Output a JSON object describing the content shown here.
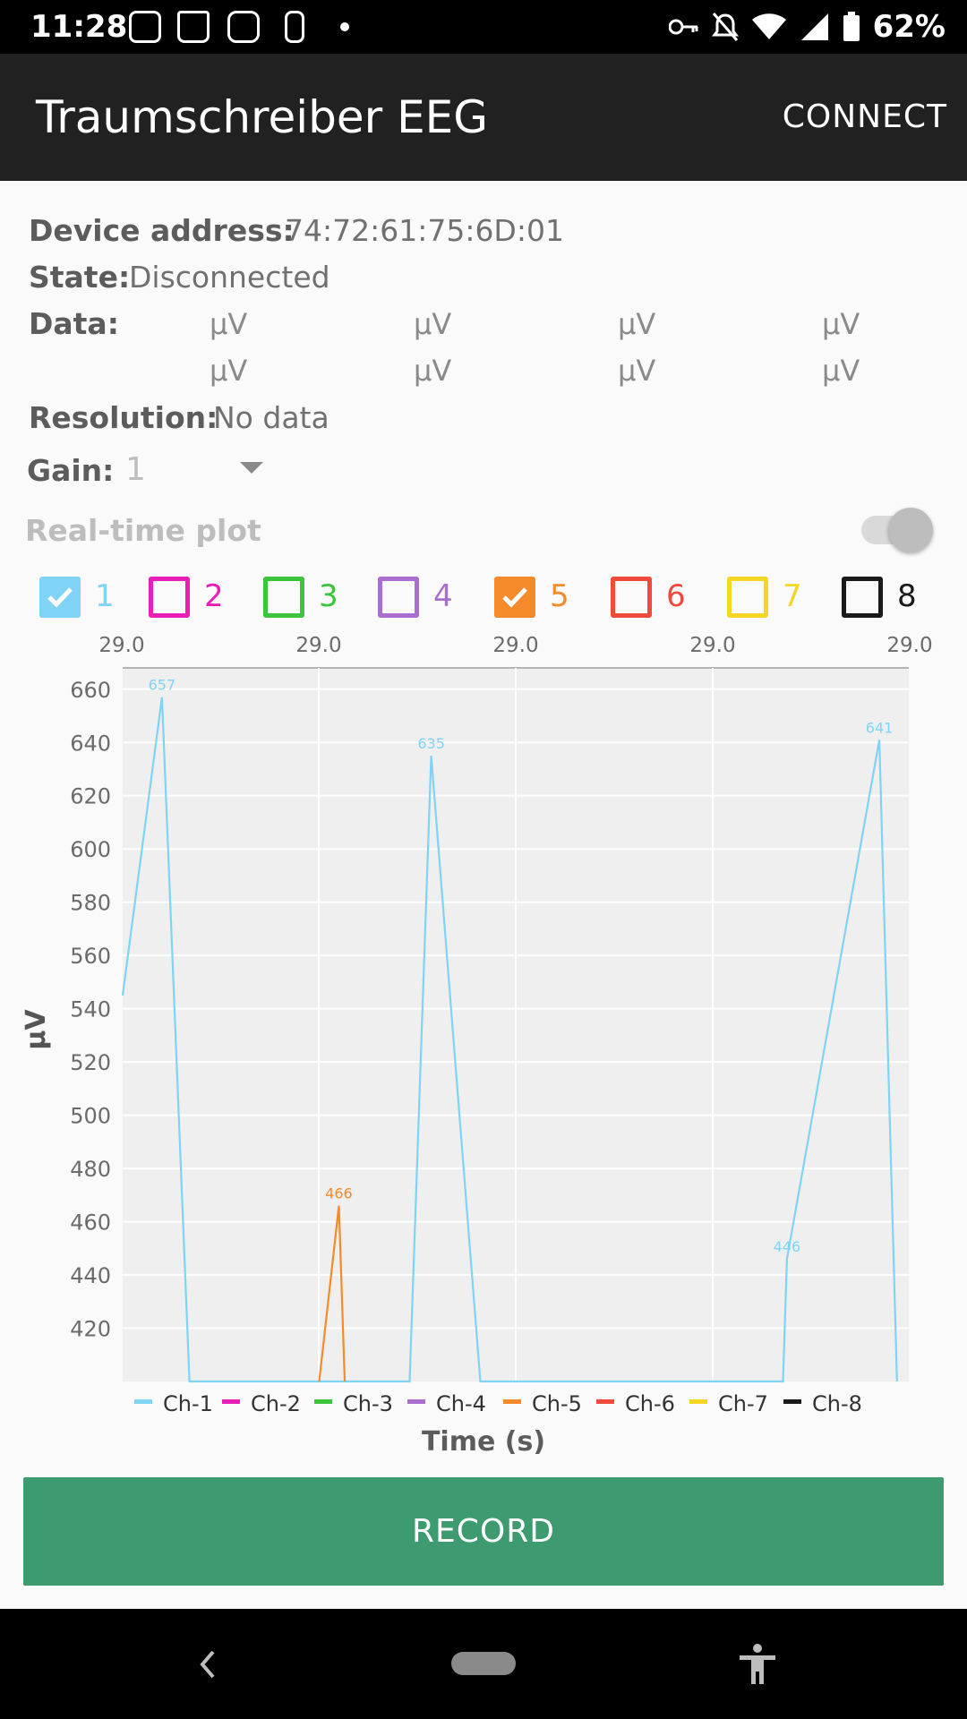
{
  "status_bar": {
    "time": "11:28",
    "battery": "62%"
  },
  "app_bar": {
    "title": "Traumschreiber EEG",
    "connect_label": "CONNECT"
  },
  "device": {
    "address_label": "Device address:",
    "address_value": "74:72:61:75:6D:01",
    "state_label": "State:",
    "state_value": "Disconnected",
    "data_label": "Data:",
    "data_units": [
      "µV",
      "µV",
      "µV",
      "µV",
      "µV",
      "µV",
      "µV",
      "µV"
    ],
    "resolution_label": "Resolution:",
    "resolution_value": "No data",
    "gain_label": "Gain:",
    "gain_value": "1"
  },
  "plot_toggle": {
    "label": "Real-time plot",
    "enabled": false
  },
  "channels": [
    {
      "label": "1",
      "color": "#7fd3f5",
      "checked": true
    },
    {
      "label": "2",
      "color": "#e91eb6",
      "checked": false
    },
    {
      "label": "3",
      "color": "#3cc43c",
      "checked": false
    },
    {
      "label": "4",
      "color": "#a96ecf",
      "checked": false
    },
    {
      "label": "5",
      "color": "#f58a2a",
      "checked": true
    },
    {
      "label": "6",
      "color": "#ef4a3c",
      "checked": false
    },
    {
      "label": "7",
      "color": "#f5d623",
      "checked": false
    },
    {
      "label": "8",
      "color": "#1a1a1a",
      "checked": false
    }
  ],
  "chart_data": {
    "type": "line",
    "xlabel": "Time (s)",
    "ylabel": "µV",
    "x_tick_labels": [
      "29.0",
      "29.0",
      "29.0",
      "29.0",
      "29.0"
    ],
    "y_ticks": [
      420,
      440,
      460,
      480,
      500,
      520,
      540,
      560,
      580,
      600,
      620,
      640,
      660
    ],
    "ylim": [
      400,
      668
    ],
    "xlim": [
      0,
      40
    ],
    "series": [
      {
        "name": "Ch-1",
        "color": "#7fd3f5",
        "points": [
          [
            0,
            545
          ],
          [
            2,
            657
          ],
          [
            3.4,
            400
          ],
          [
            14.6,
            400
          ],
          [
            15.7,
            635
          ],
          [
            18.2,
            400
          ],
          [
            33.6,
            400
          ],
          [
            33.8,
            446
          ],
          [
            38.5,
            641
          ],
          [
            39.4,
            400
          ]
        ],
        "annotations": [
          {
            "x": 2,
            "y": 657,
            "text": "657"
          },
          {
            "x": 15.7,
            "y": 635,
            "text": "635"
          },
          {
            "x": 33.8,
            "y": 446,
            "text": "446"
          },
          {
            "x": 38.5,
            "y": 641,
            "text": "641"
          }
        ]
      },
      {
        "name": "Ch-2",
        "color": "#e91eb6",
        "points": []
      },
      {
        "name": "Ch-3",
        "color": "#3cc43c",
        "points": []
      },
      {
        "name": "Ch-4",
        "color": "#a96ecf",
        "points": []
      },
      {
        "name": "Ch-5",
        "color": "#f58a2a",
        "points": [
          [
            10,
            400
          ],
          [
            11,
            466
          ],
          [
            11.3,
            400
          ]
        ],
        "annotations": [
          {
            "x": 11,
            "y": 466,
            "text": "466"
          }
        ]
      },
      {
        "name": "Ch-6",
        "color": "#ef4a3c",
        "points": []
      },
      {
        "name": "Ch-7",
        "color": "#f5d623",
        "points": []
      },
      {
        "name": "Ch-8",
        "color": "#1a1a1a",
        "points": []
      }
    ],
    "legend_position": "bottom"
  },
  "record_label": "RECORD"
}
